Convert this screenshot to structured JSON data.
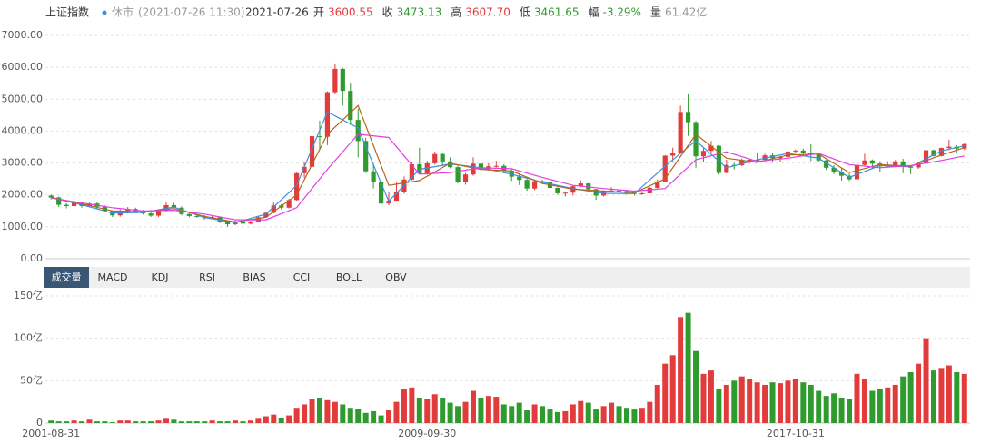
{
  "header": {
    "title": "上证指数",
    "status": "休市",
    "time": "(2021-07-26 11:30)",
    "date": "2021-07-26",
    "fields": [
      {
        "label": "开",
        "value": "3600.55"
      },
      {
        "label": "收",
        "value": "3473.13"
      },
      {
        "label": "高",
        "value": "3607.70"
      },
      {
        "label": "低",
        "value": "3461.65"
      },
      {
        "label": "幅",
        "value": "-3.29%"
      },
      {
        "label": "量",
        "value": "61.42亿"
      }
    ]
  },
  "tabs": [
    "成交量",
    "MACD",
    "KDJ",
    "RSI",
    "BIAS",
    "CCI",
    "BOLL",
    "OBV"
  ],
  "chart_data": [
    {
      "type": "candlestick",
      "up_color": "#e23b3b",
      "down_color": "#2f9b2f",
      "grid": true,
      "ylim": [
        0,
        7000
      ],
      "yticks": [
        {
          "value": 0,
          "label": "0.00"
        },
        {
          "value": 1000,
          "label": "1000.00"
        },
        {
          "value": 2000,
          "label": "2000.00"
        },
        {
          "value": 3000,
          "label": "3000.00"
        },
        {
          "value": 4000,
          "label": "4000.00"
        },
        {
          "value": 5000,
          "label": "5000.00"
        },
        {
          "value": 6000,
          "label": "6000.00"
        },
        {
          "value": 7000,
          "label": "7000.00"
        }
      ],
      "open": [
        1980,
        1920,
        1690,
        1650,
        1750,
        1650,
        1730,
        1630,
        1500,
        1360,
        1500,
        1560,
        1490,
        1420,
        1350,
        1500,
        1680,
        1600,
        1400,
        1340,
        1320,
        1270,
        1300,
        1160,
        1080,
        1160,
        1100,
        1160,
        1300,
        1440,
        1670,
        1600,
        1840,
        2680,
        2880,
        3840,
        3820,
        5220,
        5950,
        5260,
        4350,
        3690,
        2740,
        2400,
        1730,
        1820,
        2080,
        2480,
        2960,
        2670,
        2990,
        3280,
        3050,
        2870,
        2400,
        2640,
        2980,
        2810,
        2900,
        2910,
        2760,
        2570,
        2470,
        2200,
        2430,
        2400,
        2220,
        2050,
        2070,
        2270,
        2360,
        2180,
        1980,
        2100,
        2140,
        2120,
        2060,
        2030,
        2050,
        2220,
        2420,
        3230,
        3310,
        4600,
        4280,
        3210,
        3380,
        3540,
        2690,
        2940,
        2930,
        3090,
        3100,
        3100,
        3240,
        3150,
        3190,
        3360,
        3390,
        3310,
        3260,
        3080,
        2850,
        2730,
        2600,
        2490,
        2940,
        3080,
        2980,
        2890,
        2930,
        3050,
        2880,
        2860,
        2980,
        3400,
        3220,
        3470,
        3510,
        3450
      ],
      "high": [
        2010,
        1950,
        1740,
        1800,
        1790,
        1760,
        1780,
        1670,
        1520,
        1550,
        1620,
        1600,
        1530,
        1450,
        1530,
        1780,
        1750,
        1640,
        1440,
        1380,
        1370,
        1350,
        1320,
        1180,
        1200,
        1190,
        1200,
        1330,
        1480,
        1760,
        1720,
        1880,
        2700,
        3050,
        3870,
        4330,
        5250,
        6120,
        5980,
        5520,
        4700,
        3790,
        2950,
        2500,
        2100,
        2400,
        2580,
        3010,
        3480,
        3070,
        3360,
        3310,
        3180,
        2920,
        2690,
        3180,
        3000,
        2990,
        3070,
        2960,
        2800,
        2640,
        2500,
        2480,
        2480,
        2450,
        2240,
        2110,
        2300,
        2450,
        2370,
        2190,
        2150,
        2240,
        2190,
        2150,
        2100,
        2090,
        2250,
        2480,
        3240,
        3480,
        4800,
        5180,
        4320,
        3460,
        3690,
        3560,
        3100,
        3000,
        3140,
        3140,
        3300,
        3290,
        3300,
        3220,
        3400,
        3420,
        3450,
        3590,
        3290,
        3110,
        2930,
        2830,
        2670,
        3000,
        3290,
        3110,
        3050,
        3050,
        3090,
        3130,
        2920,
        3000,
        3460,
        3420,
        3480,
        3730,
        3560,
        3630
      ],
      "low": [
        1860,
        1620,
        1580,
        1600,
        1600,
        1610,
        1570,
        1450,
        1310,
        1320,
        1460,
        1450,
        1380,
        1310,
        1310,
        1480,
        1560,
        1360,
        1300,
        1280,
        1230,
        1240,
        1120,
        1000,
        1050,
        1070,
        1080,
        1150,
        1280,
        1420,
        1540,
        1580,
        1820,
        2540,
        2840,
        3400,
        3560,
        5150,
        4800,
        4190,
        3180,
        2690,
        2200,
        1660,
        1680,
        1810,
        2030,
        2460,
        2640,
        2630,
        2950,
        2900,
        2830,
        2360,
        2320,
        2600,
        2660,
        2760,
        2860,
        2680,
        2440,
        2310,
        2130,
        2150,
        2340,
        2190,
        2000,
        1950,
        1980,
        2240,
        2160,
        1850,
        1950,
        2080,
        2080,
        2000,
        1980,
        2000,
        2040,
        2200,
        2400,
        3050,
        3290,
        3850,
        2850,
        3030,
        3320,
        2640,
        2680,
        2800,
        2900,
        2990,
        3040,
        3050,
        3020,
        3020,
        3170,
        3300,
        3250,
        3060,
        3040,
        2780,
        2650,
        2450,
        2440,
        2440,
        2900,
        2820,
        2730,
        2860,
        2870,
        2680,
        2650,
        2820,
        2960,
        3200,
        3200,
        3400,
        3330,
        3400
      ],
      "close": [
        1920,
        1690,
        1650,
        1750,
        1650,
        1730,
        1630,
        1500,
        1360,
        1500,
        1560,
        1490,
        1420,
        1350,
        1500,
        1680,
        1600,
        1400,
        1340,
        1320,
        1270,
        1300,
        1160,
        1080,
        1160,
        1100,
        1160,
        1300,
        1440,
        1670,
        1600,
        1840,
        2680,
        2880,
        3840,
        3820,
        5220,
        5950,
        5260,
        4350,
        3690,
        2740,
        2400,
        1730,
        1820,
        2080,
        2480,
        2960,
        2670,
        2990,
        3280,
        3050,
        2870,
        2400,
        2640,
        2980,
        2810,
        2900,
        2910,
        2760,
        2570,
        2470,
        2200,
        2430,
        2400,
        2220,
        2050,
        2070,
        2270,
        2360,
        2180,
        1980,
        2100,
        2140,
        2120,
        2060,
        2030,
        2050,
        2220,
        2420,
        3230,
        3310,
        4600,
        4280,
        3210,
        3380,
        3540,
        2690,
        2940,
        2930,
        3090,
        3100,
        3100,
        3240,
        3150,
        3190,
        3360,
        3390,
        3310,
        3260,
        3080,
        2850,
        2730,
        2600,
        2490,
        2940,
        3080,
        2980,
        2890,
        2930,
        3050,
        2880,
        2860,
        2980,
        3400,
        3220,
        3470,
        3510,
        3450,
        3590
      ],
      "lines": [
        {
          "color": "#3d8fe0",
          "x": [
            0,
            4,
            8,
            12,
            16,
            20,
            24,
            28,
            32,
            36,
            40,
            44,
            48,
            52,
            56,
            60,
            64,
            68,
            72,
            76,
            80,
            84,
            88,
            92,
            96,
            100,
            104,
            108,
            112,
            116,
            119
          ],
          "values": [
            1920,
            1690,
            1430,
            1450,
            1620,
            1290,
            1130,
            1400,
            2300,
            4600,
            4100,
            1800,
            2800,
            2970,
            2850,
            2650,
            2400,
            2200,
            2050,
            2040,
            2900,
            3700,
            2850,
            3100,
            3300,
            3150,
            2550,
            2920,
            2880,
            3380,
            3540
          ]
        },
        {
          "color": "#b5651d",
          "x": [
            0,
            4,
            8,
            12,
            16,
            20,
            24,
            28,
            32,
            36,
            40,
            44,
            48,
            52,
            56,
            60,
            64,
            68,
            72,
            76,
            80,
            84,
            88,
            92,
            96,
            100,
            104,
            108,
            112,
            116,
            119
          ],
          "values": [
            1920,
            1720,
            1500,
            1470,
            1570,
            1330,
            1150,
            1300,
            2000,
            3900,
            4800,
            2300,
            2450,
            2990,
            2800,
            2750,
            2360,
            2180,
            2120,
            2070,
            2500,
            3900,
            3150,
            3020,
            3250,
            3280,
            2700,
            2950,
            2900,
            3250,
            3480
          ]
        },
        {
          "color": "#e040e0",
          "x": [
            0,
            4,
            8,
            12,
            16,
            20,
            24,
            28,
            32,
            36,
            40,
            44,
            48,
            52,
            56,
            60,
            64,
            68,
            72,
            76,
            80,
            84,
            88,
            92,
            96,
            100,
            104,
            108,
            112,
            116,
            119
          ],
          "values": [
            1900,
            1750,
            1600,
            1500,
            1520,
            1400,
            1220,
            1220,
            1600,
            2800,
            3900,
            3800,
            2650,
            2700,
            2850,
            2820,
            2550,
            2300,
            2200,
            2120,
            2200,
            3100,
            3350,
            3050,
            3150,
            3300,
            2950,
            2850,
            2920,
            3080,
            3220
          ]
        }
      ]
    },
    {
      "type": "bar",
      "grid": true,
      "ylim": [
        0,
        150
      ],
      "yticks": [
        0,
        {
          "value": 50,
          "label": "50亿"
        },
        {
          "value": 100,
          "label": "100亿"
        },
        {
          "value": 150,
          "label": "150亿"
        }
      ],
      "categories": [
        "2001-08-31",
        null,
        null,
        null,
        null,
        null,
        null,
        null,
        null,
        null,
        null,
        null,
        null,
        null,
        null,
        null,
        null,
        null,
        null,
        null,
        null,
        null,
        null,
        null,
        null,
        null,
        null,
        null,
        null,
        null,
        null,
        null,
        null,
        null,
        null,
        null,
        null,
        null,
        null,
        null,
        null,
        null,
        null,
        null,
        null,
        null,
        null,
        null,
        null,
        "2009-09-30",
        null,
        null,
        null,
        null,
        null,
        null,
        null,
        null,
        null,
        null,
        null,
        null,
        null,
        null,
        null,
        null,
        null,
        null,
        null,
        null,
        null,
        null,
        null,
        null,
        null,
        null,
        null,
        null,
        null,
        null,
        null,
        null,
        null,
        null,
        null,
        null,
        null,
        null,
        null,
        null,
        null,
        null,
        null,
        null,
        null,
        null,
        null,
        "2017-10-31",
        null,
        null,
        null,
        null,
        null,
        null,
        null,
        null,
        null,
        null,
        null,
        null,
        null,
        null,
        null,
        null,
        null,
        null,
        null,
        null,
        null,
        null
      ],
      "values": [
        3,
        2,
        2,
        3,
        2,
        4,
        2,
        2,
        1,
        3,
        3,
        2,
        2,
        2,
        3,
        5,
        4,
        2,
        2,
        2,
        2,
        3,
        2,
        2,
        3,
        2,
        3,
        5,
        8,
        10,
        6,
        9,
        18,
        22,
        28,
        30,
        27,
        25,
        22,
        18,
        17,
        12,
        14,
        9,
        15,
        25,
        40,
        42,
        30,
        28,
        34,
        30,
        24,
        20,
        25,
        38,
        30,
        32,
        31,
        22,
        20,
        24,
        15,
        22,
        20,
        16,
        13,
        14,
        22,
        26,
        24,
        16,
        20,
        24,
        20,
        18,
        16,
        18,
        25,
        45,
        70,
        80,
        125,
        130,
        85,
        58,
        62,
        40,
        45,
        50,
        55,
        52,
        48,
        45,
        48,
        47,
        50,
        52,
        48,
        45,
        38,
        32,
        35,
        30,
        28,
        58,
        52,
        38,
        40,
        42,
        45,
        55,
        60,
        70,
        100,
        62,
        65,
        68,
        60,
        58
      ]
    }
  ]
}
